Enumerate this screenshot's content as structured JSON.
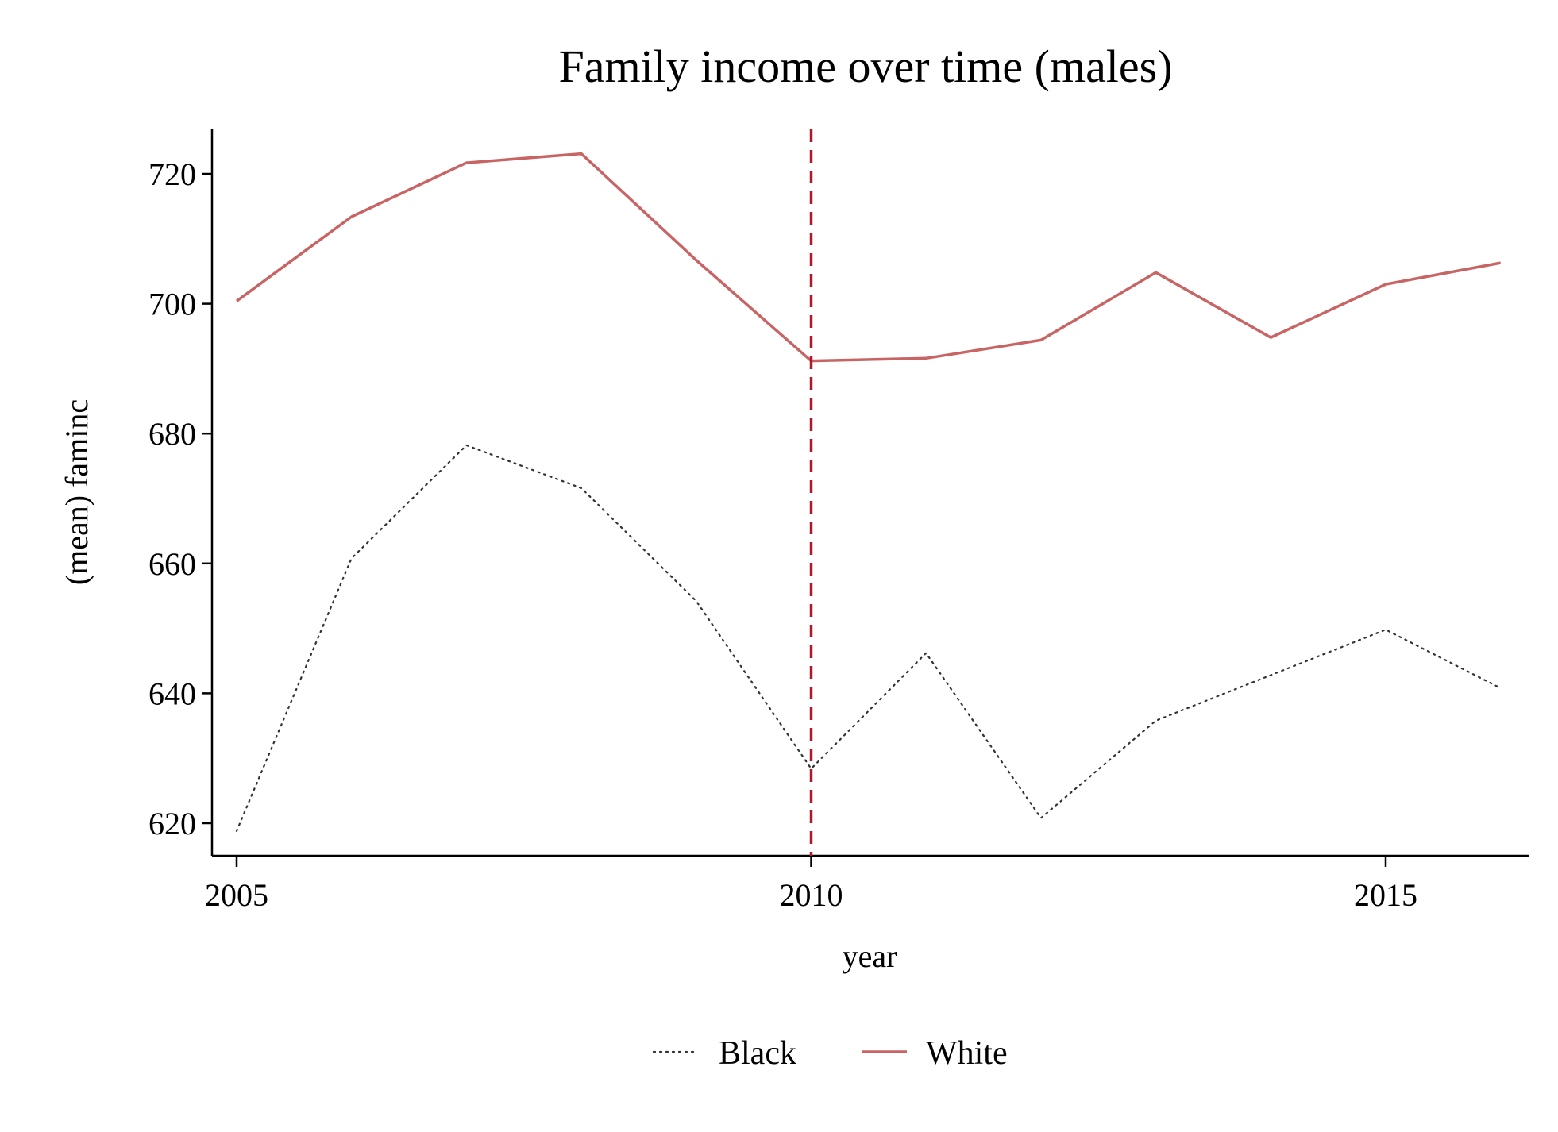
{
  "chart_data": {
    "type": "line",
    "title": "Family income over time (males)",
    "xlabel": "year",
    "ylabel": "(mean) faminc",
    "xlim": [
      2004.8,
      2016.2
    ],
    "ylim": [
      615,
      727
    ],
    "x_ticks": [
      2005,
      2010,
      2015
    ],
    "y_ticks": [
      620,
      640,
      660,
      680,
      700,
      720
    ],
    "grid": false,
    "legend_position": "bottom",
    "reference_line": {
      "x": 2010,
      "style": "dashed",
      "color": "#B2182B"
    },
    "x": [
      2005,
      2006,
      2007,
      2008,
      2009,
      2010,
      2011,
      2012,
      2013,
      2014,
      2015,
      2016
    ],
    "series": [
      {
        "name": "Black",
        "style": "dotted",
        "color": "#333333",
        "values": [
          618.8,
          660.8,
          678.2,
          671.6,
          654.2,
          628.4,
          646.2,
          620.8,
          635.8,
          642.8,
          649.8,
          640.8
        ]
      },
      {
        "name": "White",
        "style": "solid",
        "color": "#C86464",
        "values": [
          700.4,
          713.4,
          721.7,
          723.1,
          706.7,
          691.2,
          691.6,
          694.4,
          704.8,
          694.8,
          703.0,
          706.3
        ]
      }
    ]
  }
}
